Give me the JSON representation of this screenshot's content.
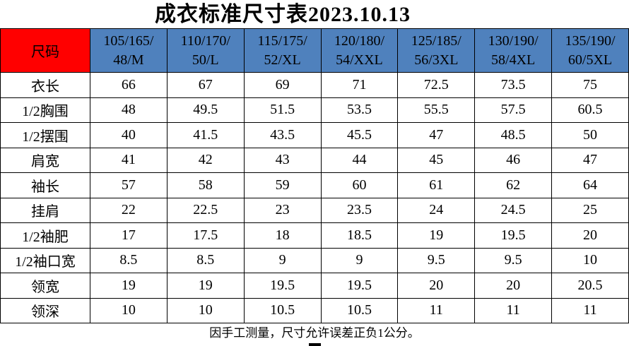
{
  "page": {
    "title": "成衣标准尺寸表2023.10.13",
    "footer_note": "因手工测量，尺寸允许误差正负1公分。"
  },
  "colors": {
    "corner_bg": "#ff0000",
    "header_bg": "#4f81bd",
    "border": "#000000"
  },
  "chart_data": {
    "type": "table",
    "title": "成衣标准尺寸表2023.10.13",
    "corner_label": "尺码",
    "size_columns": [
      "105/165/\n48/M",
      "110/170/\n50/L",
      "115/175/\n52/XL",
      "120/180/\n54/XXL",
      "125/185/\n56/3XL",
      "130/190/\n58/4XL",
      "135/190/\n60/5XL"
    ],
    "rows": [
      {
        "label": "衣长",
        "values": [
          66,
          67,
          69,
          71,
          72.5,
          73.5,
          75
        ]
      },
      {
        "label": "1/2胸围",
        "values": [
          48,
          49.5,
          51.5,
          53.5,
          55.5,
          57.5,
          60.5
        ]
      },
      {
        "label": "1/2摆围",
        "values": [
          40,
          41.5,
          43.5,
          45.5,
          47,
          48.5,
          50
        ]
      },
      {
        "label": "肩宽",
        "values": [
          41,
          42,
          43,
          44,
          45,
          46,
          47
        ]
      },
      {
        "label": "袖长",
        "values": [
          57,
          58,
          59,
          60,
          61,
          62,
          64
        ]
      },
      {
        "label": "挂肩",
        "values": [
          22,
          22.5,
          23,
          23.5,
          24,
          24.5,
          25
        ]
      },
      {
        "label": "1/2袖肥",
        "values": [
          17,
          17.5,
          18,
          18.5,
          19,
          19.5,
          20
        ]
      },
      {
        "label": "1/2袖口宽",
        "values": [
          8.5,
          8.5,
          9,
          9,
          9.5,
          9.5,
          10
        ]
      },
      {
        "label": "领宽",
        "values": [
          19,
          19,
          19.5,
          19.5,
          20,
          20,
          20.5
        ]
      },
      {
        "label": "领深",
        "values": [
          10,
          10,
          10.5,
          10.5,
          11,
          11,
          11
        ]
      }
    ],
    "footnote": "因手工测量，尺寸允许误差正负1公分。"
  }
}
